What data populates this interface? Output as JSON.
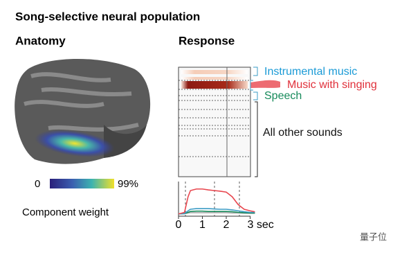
{
  "title": "Song-selective neural population",
  "anatomy": {
    "heading": "Anatomy",
    "colorbar": {
      "min_label": "0",
      "max_label": "99%",
      "caption": "Component weight"
    }
  },
  "response": {
    "heading": "Response",
    "labels": [
      "Instrumental music",
      "Music with singing",
      "Speech",
      "All other sounds"
    ],
    "label_colors": [
      "#1a9ad6",
      "#e0303a",
      "#168a5a",
      "#111111"
    ]
  },
  "watermark": "量子位",
  "chart_data": {
    "type": "line",
    "x": [
      0,
      0.25,
      0.4,
      0.5,
      0.75,
      1,
      1.25,
      1.5,
      1.75,
      2,
      2.25,
      2.5,
      2.75,
      3,
      3.2
    ],
    "series": [
      {
        "color": "#aaaaaa",
        "values": [
          0.06,
          0.06,
          0.08,
          0.09,
          0.09,
          0.09,
          0.09,
          0.09,
          0.09,
          0.09,
          0.08,
          0.08,
          0.07,
          0.07,
          0.07
        ]
      },
      {
        "color": "#168a5a",
        "values": [
          0.05,
          0.06,
          0.1,
          0.13,
          0.14,
          0.14,
          0.13,
          0.13,
          0.13,
          0.13,
          0.12,
          0.1,
          0.09,
          0.08,
          0.08
        ]
      },
      {
        "color": "#3a9bc4",
        "values": [
          0.05,
          0.06,
          0.15,
          0.2,
          0.22,
          0.22,
          0.22,
          0.21,
          0.2,
          0.2,
          0.18,
          0.15,
          0.12,
          0.1,
          0.1
        ]
      },
      {
        "color": "#e8464e",
        "values": [
          0.05,
          0.1,
          0.6,
          0.8,
          0.85,
          0.85,
          0.82,
          0.8,
          0.78,
          0.75,
          0.6,
          0.35,
          0.2,
          0.15,
          0.12
        ]
      }
    ],
    "xlim": [
      0,
      3.2
    ],
    "ylim": [
      0,
      1
    ],
    "xticks": [
      0,
      1,
      2,
      {
        "value": 3,
        "label": "3 sec"
      }
    ]
  }
}
